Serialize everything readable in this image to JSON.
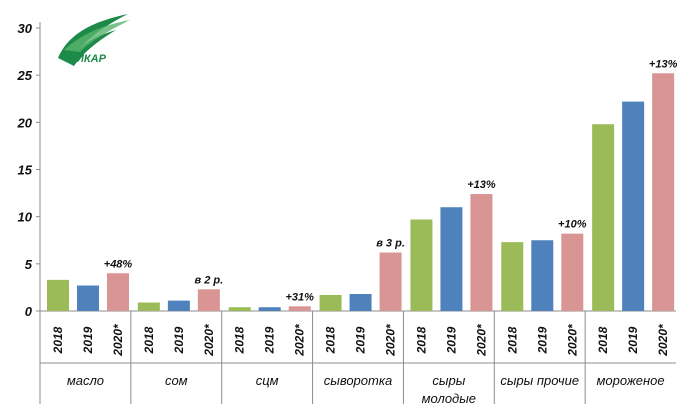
{
  "logo": {
    "text": "ИКАР"
  },
  "chart_data": {
    "type": "bar",
    "ylim": [
      0,
      30
    ],
    "yticks": [
      0,
      5,
      10,
      15,
      20,
      25,
      30
    ],
    "grid": false,
    "legend": "none",
    "groups": [
      {
        "name": "масло",
        "annotation": "+48%",
        "bars": [
          {
            "year": "2018",
            "value": 3.3
          },
          {
            "year": "2019",
            "value": 2.7
          },
          {
            "year": "2020*",
            "value": 4.0
          }
        ]
      },
      {
        "name": "сом",
        "annotation": "в 2 р.",
        "bars": [
          {
            "year": "2018",
            "value": 0.9
          },
          {
            "year": "2019",
            "value": 1.1
          },
          {
            "year": "2020*",
            "value": 2.3
          }
        ]
      },
      {
        "name": "сцм",
        "annotation": "+31%",
        "bars": [
          {
            "year": "2018",
            "value": 0.4
          },
          {
            "year": "2019",
            "value": 0.4
          },
          {
            "year": "2020*",
            "value": 0.5
          }
        ]
      },
      {
        "name": "сыворотка",
        "annotation": "в 3 р.",
        "bars": [
          {
            "year": "2018",
            "value": 1.7
          },
          {
            "year": "2019",
            "value": 1.8
          },
          {
            "year": "2020*",
            "value": 6.2
          }
        ]
      },
      {
        "name": "сыры молодые",
        "name_lines": [
          "сыры",
          "молодые"
        ],
        "annotation": "+13%",
        "bars": [
          {
            "year": "2018",
            "value": 9.7
          },
          {
            "year": "2019",
            "value": 11.0
          },
          {
            "year": "2020*",
            "value": 12.4
          }
        ]
      },
      {
        "name": "сыры прочие",
        "annotation": "+10%",
        "bars": [
          {
            "year": "2018",
            "value": 7.3
          },
          {
            "year": "2019",
            "value": 7.5
          },
          {
            "year": "2020*",
            "value": 8.2
          }
        ]
      },
      {
        "name": "мороженое",
        "annotation": "+13%",
        "bars": [
          {
            "year": "2018",
            "value": 19.8
          },
          {
            "year": "2019",
            "value": 22.2
          },
          {
            "year": "2020*",
            "value": 25.2
          }
        ]
      }
    ],
    "colors": {
      "2018": "#9bbb59",
      "2019": "#4f81bd",
      "2020*": "#d99594"
    }
  }
}
